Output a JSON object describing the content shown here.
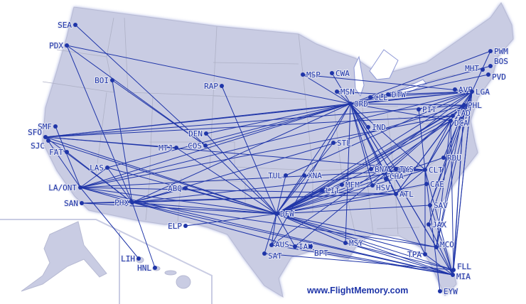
{
  "map": {
    "land_color": "#c9cce3",
    "route_color": "#1f35a8",
    "airports": [
      "SEA",
      "PDX",
      "BOI",
      "RAP",
      "SMF",
      "SFO",
      "SJC",
      "FAT",
      "DEN",
      "COS",
      "MTJ",
      "LAS",
      "LA/ONT",
      "SAN",
      "PHX",
      "ABQ",
      "ELP",
      "LIH",
      "HNL",
      "MSP",
      "CWA",
      "MSN",
      "ORD",
      "CLE",
      "DTW",
      "PWM",
      "BOS",
      "MHT",
      "PVD",
      "AVP",
      "LGA",
      "PHL",
      "PIT",
      "IAD",
      "DCA",
      "IND",
      "STL",
      "RDU",
      "BNA",
      "TYS",
      "CLT",
      "CHA",
      "TUL",
      "XNA",
      "MEM",
      "HSV",
      "LIT",
      "ATL",
      "CAE",
      "SAV",
      "JAX",
      "MCO",
      "TPA",
      "FLL",
      "MIA",
      "EYW",
      "DFW",
      "AUS",
      "SAT",
      "IAH",
      "BPT",
      "MSY"
    ],
    "routes": [
      [
        "PDX",
        "ORD"
      ],
      [
        "SFO",
        "ORD"
      ],
      [
        "LA/ONT",
        "ORD"
      ],
      [
        "LAS",
        "ORD"
      ],
      [
        "PHX",
        "ORD"
      ],
      [
        "DEN",
        "ORD"
      ],
      [
        "COS",
        "ORD"
      ],
      [
        "MSP",
        "ORD"
      ],
      [
        "CWA",
        "ORD"
      ],
      [
        "MSN",
        "ORD"
      ],
      [
        "ORD",
        "LGA"
      ],
      [
        "ORD",
        "PHL"
      ],
      [
        "ORD",
        "DCA"
      ],
      [
        "ORD",
        "BOS"
      ],
      [
        "ORD",
        "PVD"
      ],
      [
        "ORD",
        "IND"
      ],
      [
        "ORD",
        "BNA"
      ],
      [
        "ORD",
        "ATL"
      ],
      [
        "ORD",
        "CLT"
      ],
      [
        "ORD",
        "HSV"
      ],
      [
        "ORD",
        "MCO"
      ],
      [
        "ORD",
        "TPA"
      ],
      [
        "ORD",
        "DFW"
      ],
      [
        "ORD",
        "AUS"
      ],
      [
        "ORD",
        "MIA"
      ],
      [
        "ORD",
        "MSY"
      ],
      [
        "ORD",
        "TYS"
      ],
      [
        "ORD",
        "CHA"
      ],
      [
        "PWM",
        "ORD"
      ],
      [
        "MSP",
        "LGA"
      ],
      [
        "MSN",
        "DTW"
      ],
      [
        "RAP",
        "DFW"
      ],
      [
        "SFO",
        "DFW"
      ],
      [
        "SJC",
        "DFW"
      ],
      [
        "LA/ONT",
        "DFW"
      ],
      [
        "SAN",
        "DFW"
      ],
      [
        "PHX",
        "DFW"
      ],
      [
        "LAS",
        "DFW"
      ],
      [
        "DEN",
        "DFW"
      ],
      [
        "ABQ",
        "DFW"
      ],
      [
        "ELP",
        "DFW"
      ],
      [
        "MTJ",
        "DFW"
      ],
      [
        "COS",
        "DFW"
      ],
      [
        "TUL",
        "DFW"
      ],
      [
        "XNA",
        "DFW"
      ],
      [
        "LIT",
        "DFW"
      ],
      [
        "MEM",
        "DFW"
      ],
      [
        "BNA",
        "DFW"
      ],
      [
        "ATL",
        "DFW"
      ],
      [
        "CLT",
        "DFW"
      ],
      [
        "LGA",
        "DFW"
      ],
      [
        "DCA",
        "DFW"
      ],
      [
        "IAD",
        "DFW"
      ],
      [
        "PHL",
        "DFW"
      ],
      [
        "MIA",
        "DFW"
      ],
      [
        "MCO",
        "DFW"
      ],
      [
        "TPA",
        "DFW"
      ],
      [
        "FLL",
        "DFW"
      ],
      [
        "MSY",
        "DFW"
      ],
      [
        "AUS",
        "DFW"
      ],
      [
        "SAT",
        "DFW"
      ],
      [
        "IAH",
        "DFW"
      ],
      [
        "CAE",
        "DFW"
      ],
      [
        "SAV",
        "DFW"
      ],
      [
        "RDU",
        "DFW"
      ],
      [
        "STL",
        "DFW"
      ],
      [
        "TYS",
        "DFW"
      ],
      [
        "LGA",
        "PWM"
      ],
      [
        "LGA",
        "ATL"
      ],
      [
        "LGA",
        "CLT"
      ],
      [
        "LGA",
        "MIA"
      ],
      [
        "LGA",
        "FLL"
      ],
      [
        "LGA",
        "MCO"
      ],
      [
        "LGA",
        "DTW"
      ],
      [
        "LGA",
        "CLE"
      ],
      [
        "LGA",
        "PIT"
      ],
      [
        "LGA",
        "SAV"
      ],
      [
        "LGA",
        "RDU"
      ],
      [
        "LGA",
        "SFO"
      ],
      [
        "LGA",
        "LA/ONT"
      ],
      [
        "PHX",
        "SFO"
      ],
      [
        "PHX",
        "LA/ONT"
      ],
      [
        "PHX",
        "SAN"
      ],
      [
        "PHX",
        "LAS"
      ],
      [
        "PHX",
        "PDX"
      ],
      [
        "PHX",
        "BOI"
      ],
      [
        "PHX",
        "HNL"
      ],
      [
        "PHX",
        "ABQ"
      ],
      [
        "PHX",
        "ATL"
      ],
      [
        "PHX",
        "CLT"
      ],
      [
        "PHX",
        "PHL"
      ],
      [
        "PHX",
        "MIA"
      ],
      [
        "PHX",
        "IAH"
      ],
      [
        "PHX",
        "MCO"
      ],
      [
        "PHX",
        "FAT"
      ],
      [
        "LA/ONT",
        "LIH"
      ],
      [
        "LA/ONT",
        "SMF"
      ],
      [
        "LA/ONT",
        "SFO"
      ],
      [
        "LA/ONT",
        "LAS"
      ],
      [
        "LA/ONT",
        "ATL"
      ],
      [
        "LA/ONT",
        "CLT"
      ],
      [
        "LA/ONT",
        "MIA"
      ],
      [
        "LA/ONT",
        "IAD"
      ],
      [
        "SAN",
        "ATL"
      ],
      [
        "SFO",
        "IAD"
      ],
      [
        "SFO",
        "CLT"
      ],
      [
        "SFO",
        "PHL"
      ],
      [
        "SFO",
        "MTJ"
      ],
      [
        "SEA",
        "COS"
      ],
      [
        "PDX",
        "COS"
      ],
      [
        "BOI",
        "COS"
      ],
      [
        "MIA",
        "CLT"
      ],
      [
        "MIA",
        "SAV"
      ],
      [
        "MIA",
        "JAX"
      ],
      [
        "MIA",
        "TPA"
      ],
      [
        "MIA",
        "AUS"
      ],
      [
        "MIA",
        "IAH"
      ],
      [
        "MIA",
        "PHL"
      ],
      [
        "MIA",
        "MSY"
      ],
      [
        "FLL",
        "DCA"
      ],
      [
        "FLL",
        "PHL"
      ],
      [
        "EYW",
        "CLT"
      ],
      [
        "MCO",
        "PHL"
      ],
      [
        "MCO",
        "DCA"
      ],
      [
        "TPA",
        "CLT"
      ],
      [
        "MSY",
        "FLL"
      ],
      [
        "SAT",
        "FLL"
      ],
      [
        "CLT",
        "PHL"
      ],
      [
        "CLT",
        "DCA"
      ],
      [
        "CLT",
        "TYS"
      ],
      [
        "CLT",
        "PIT"
      ],
      [
        "CLT",
        "ATL"
      ],
      [
        "ATL",
        "DCA"
      ],
      [
        "BNA",
        "LGA"
      ],
      [
        "TUL",
        "LGA"
      ],
      [
        "LIT",
        "PHL"
      ],
      [
        "AUS",
        "DCA"
      ],
      [
        "IAH",
        "PHL"
      ],
      [
        "HSV",
        "PHL"
      ],
      [
        "SAV",
        "PHL"
      ],
      [
        "JAX",
        "LGA"
      ]
    ]
  },
  "footer": {
    "text": "www.FlightMemory.com"
  }
}
